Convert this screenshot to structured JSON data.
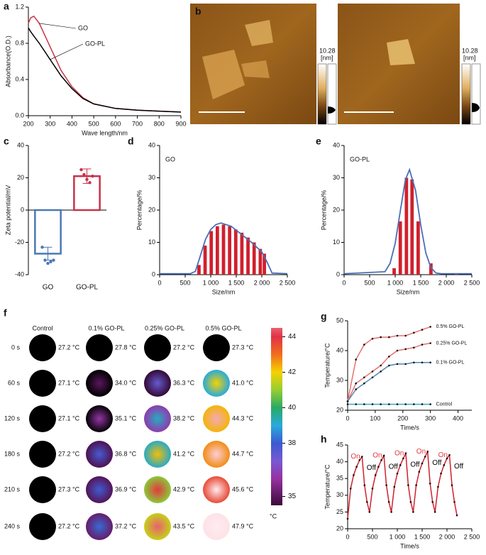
{
  "chart_data": [
    {
      "type": "line",
      "label": "a",
      "xlabel": "Wave length/nm",
      "ylabel": "Absorbance(O.D.)",
      "x": [
        200,
        210,
        225,
        250,
        300,
        350,
        400,
        450,
        500,
        600,
        700,
        800,
        900
      ],
      "series": [
        {
          "name": "GO",
          "color": "#c8334a",
          "values": [
            1.02,
            1.08,
            1.1,
            1.02,
            0.76,
            0.5,
            0.32,
            0.2,
            0.13,
            0.08,
            0.06,
            0.05,
            0.04
          ]
        },
        {
          "name": "GO-PL",
          "color": "#000000",
          "values": [
            0.97,
            0.93,
            0.88,
            0.8,
            0.62,
            0.44,
            0.3,
            0.19,
            0.13,
            0.08,
            0.06,
            0.05,
            0.04
          ]
        }
      ],
      "xlim": [
        200,
        900
      ],
      "xticks": [
        200,
        300,
        400,
        500,
        600,
        700,
        800,
        900
      ],
      "ylim": [
        0,
        1.2
      ],
      "yticks": [
        {
          "value": 0,
          "label": "0.0"
        },
        0.4,
        0.8,
        1.2
      ]
    },
    {
      "type": "bar",
      "label": "c",
      "ylabel": "Zeta potential/mV",
      "categories": [
        "GO",
        "GO-PL"
      ],
      "values": [
        -27,
        21
      ],
      "errors": [
        4,
        4.5
      ],
      "points": [
        [
          -23,
          -31,
          -33,
          -32,
          -31
        ],
        [
          25,
          22,
          19,
          17,
          21
        ]
      ],
      "colors": [
        "#4a78b5",
        "#c8334a"
      ],
      "ylim": [
        -40,
        40
      ],
      "yticks": [
        -40,
        -20,
        0,
        20,
        40
      ]
    },
    {
      "type": "histogram",
      "label": "d",
      "title": "GO",
      "xlabel": "Size/nm",
      "ylabel": "Percentage/%",
      "x": [
        770,
        890,
        1010,
        1130,
        1250,
        1370,
        1490,
        1610,
        1730,
        1850,
        1970,
        2050
      ],
      "values": [
        3,
        9,
        13.5,
        15,
        15.5,
        15,
        14,
        13,
        11.5,
        10,
        8,
        6.5
      ],
      "color": "#d0202c",
      "fit": {
        "x": [
          0,
          600,
          700,
          800,
          900,
          1000,
          1100,
          1200,
          1400,
          1600,
          1800,
          2000,
          2100,
          2200,
          2500
        ],
        "values": [
          0.3,
          0.3,
          1,
          6,
          11,
          14,
          15.5,
          16,
          15,
          12.5,
          10,
          7,
          4,
          0.5,
          0.3
        ],
        "color": "#4a6fb5"
      },
      "xlim": [
        0,
        2500
      ],
      "xticks": [
        0,
        500,
        {
          "value": 1000,
          "label": "1 000"
        },
        {
          "value": 1500,
          "label": "1 500"
        },
        {
          "value": 2000,
          "label": "2 000"
        },
        {
          "value": 2500,
          "label": "2 500"
        }
      ],
      "ylim": [
        0,
        40
      ],
      "yticks": [
        0,
        10,
        20,
        30,
        40
      ]
    },
    {
      "type": "histogram",
      "label": "e",
      "title": "GO-PL",
      "xlabel": "Size/nm",
      "ylabel": "Percentage/%",
      "x": [
        980,
        1100,
        1220,
        1330,
        1450,
        1700,
        2200
      ],
      "values": [
        2,
        16.5,
        30,
        29.5,
        16.5,
        3.5,
        0.3
      ],
      "color": "#d0202c",
      "fit": {
        "x": [
          0,
          800,
          900,
          1000,
          1100,
          1200,
          1280,
          1400,
          1500,
          1600,
          1700,
          1800,
          1900,
          2500
        ],
        "values": [
          0.3,
          0.9,
          3.5,
          9.7,
          19.7,
          29.4,
          32.5,
          26,
          15.4,
          6.7,
          2.1,
          0.5,
          0.3,
          0.3
        ],
        "color": "#4a6fb5"
      },
      "xlim": [
        0,
        2500
      ],
      "xticks": [
        0,
        500,
        {
          "value": 1000,
          "label": "1 000"
        },
        {
          "value": 1500,
          "label": "1 500"
        },
        {
          "value": 2000,
          "label": "2 000"
        },
        {
          "value": 2500,
          "label": "2 500"
        }
      ],
      "ylim": [
        0,
        40
      ],
      "yticks": [
        0,
        10,
        20,
        30,
        40
      ]
    },
    {
      "type": "line",
      "label": "g",
      "xlabel": "Time/s",
      "ylabel": "Temperature/°C",
      "markers": true,
      "x": [
        0,
        30,
        60,
        90,
        120,
        150,
        180,
        210,
        240,
        270,
        300
      ],
      "series": [
        {
          "name": "0.5% GO-PL",
          "color": "#e87070",
          "values": [
            23,
            37,
            42,
            44,
            44.5,
            44.5,
            45,
            45,
            46,
            47,
            48
          ]
        },
        {
          "name": "0.25% GO-PL",
          "color": "#e87070",
          "values": [
            23,
            29,
            31,
            33,
            35,
            38,
            40,
            40.5,
            41,
            42,
            42.5
          ]
        },
        {
          "name": "0.1% GO-PL",
          "color": "#4f86b0",
          "values": [
            23,
            27,
            29,
            31,
            33,
            35,
            35.5,
            35.5,
            36,
            36,
            36
          ]
        },
        {
          "name": "Control",
          "color": "#3aa7c9",
          "values": [
            22,
            22,
            22,
            22,
            22,
            22,
            22,
            22,
            22,
            22,
            22
          ]
        }
      ],
      "xlim": [
        0,
        450
      ],
      "xticks": [
        0,
        100,
        200,
        300,
        400
      ],
      "ylim": [
        20,
        50
      ],
      "yticks": [
        20,
        30,
        40,
        50
      ]
    },
    {
      "type": "line",
      "label": "h",
      "xlabel": "Time/s",
      "ylabel": "Temperature/°C",
      "markers": true,
      "x": [
        0,
        60,
        120,
        180,
        240,
        290,
        340,
        390,
        440,
        500,
        560,
        620,
        680,
        730,
        780,
        830,
        880,
        940,
        1000,
        1060,
        1120,
        1170,
        1220,
        1270,
        1320,
        1380,
        1440,
        1500,
        1560,
        1610,
        1660,
        1710,
        1760,
        1820,
        1880,
        1940,
        2000,
        2050,
        2100,
        2150,
        2200
      ],
      "series": [
        {
          "color": "#d0202c",
          "values": [
            23,
            32,
            36,
            38.5,
            40.5,
            41.5,
            33,
            28,
            25,
            32,
            36,
            38.5,
            40.5,
            41.8,
            33,
            28,
            25,
            32.5,
            36.5,
            39,
            41,
            42.5,
            33,
            28,
            25,
            33,
            37,
            39.5,
            41.5,
            43,
            33.5,
            28,
            25,
            32.5,
            36.5,
            39,
            41,
            42,
            33,
            28,
            24
          ]
        }
      ],
      "annotations": [
        {
          "text": "On",
          "color": "#e0393a"
        },
        {
          "text": "Off",
          "color": "#000000"
        },
        {
          "text": "On",
          "color": "#e0393a"
        },
        {
          "text": "Off",
          "color": "#000000"
        },
        {
          "text": "On",
          "color": "#e0393a"
        },
        {
          "text": "Off",
          "color": "#000000"
        },
        {
          "text": "On",
          "color": "#e0393a"
        },
        {
          "text": "Off",
          "color": "#000000"
        },
        {
          "text": "On",
          "color": "#e0393a"
        },
        {
          "text": "Off",
          "color": "#000000"
        }
      ],
      "xlim": [
        0,
        2500
      ],
      "xticks": [
        0,
        500,
        {
          "value": 1000,
          "label": "1 000"
        },
        {
          "value": 1500,
          "label": "1 500"
        },
        {
          "value": 2000,
          "label": "2 000"
        },
        {
          "value": 2500,
          "label": "2 500"
        }
      ],
      "ylim": [
        20,
        45
      ],
      "yticks": [
        20,
        25,
        30,
        35,
        40,
        45
      ]
    }
  ],
  "afm": {
    "label": "b",
    "scale_max": "10.28",
    "unit": "[nm]"
  },
  "thermal": {
    "label": "f",
    "columns": [
      "Control",
      "0.1% GO-PL",
      "0.25% GO-PL",
      "0.5% GO-PL"
    ],
    "rows": [
      {
        "time": "0 s",
        "temps": [
          "27.2 °C",
          "27.8 °C",
          "27.2 °C",
          "27.3 °C"
        ]
      },
      {
        "time": "60 s",
        "temps": [
          "27.1 °C",
          "34.0 °C",
          "36.3 °C",
          "41.0 °C"
        ]
      },
      {
        "time": "120 s",
        "temps": [
          "27.1 °C",
          "35.1 °C",
          "38.2 °C",
          "44.3 °C"
        ]
      },
      {
        "time": "180 s",
        "temps": [
          "27.2 °C",
          "36.8 °C",
          "41.2 °C",
          "44.7 °C"
        ]
      },
      {
        "time": "210 s",
        "temps": [
          "27.3 °C",
          "36.9 °C",
          "42.9 °C",
          "45.6 °C"
        ]
      },
      {
        "time": "240 s",
        "temps": [
          "27.2 °C",
          "37.2 °C",
          "43.5 °C",
          "47.9 °C"
        ]
      }
    ],
    "colorbar": {
      "lim": [
        34.5,
        44.5
      ],
      "ticks": [
        44,
        42,
        40,
        38,
        35
      ],
      "unit": "°C"
    }
  }
}
